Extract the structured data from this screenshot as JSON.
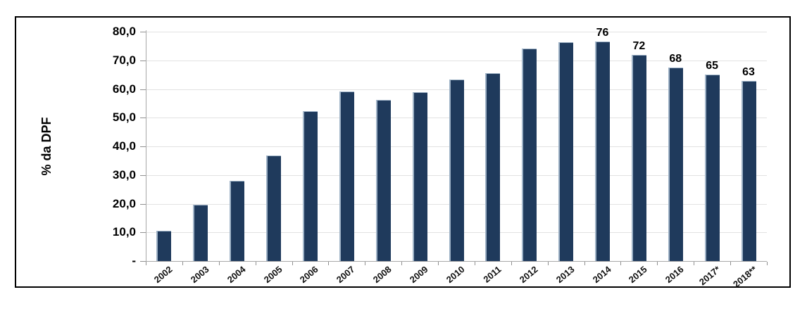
{
  "chart_data": {
    "type": "bar",
    "title": "",
    "xlabel": "",
    "ylabel": "% da DPF",
    "categories": [
      "2002",
      "2003",
      "2004",
      "2005",
      "2006",
      "2007",
      "2008",
      "2009",
      "2010",
      "2011",
      "2012",
      "2013",
      "2014",
      "2015",
      "2016",
      "2017*",
      "2018**"
    ],
    "values": [
      10.5,
      19.7,
      27.9,
      36.7,
      52.3,
      59.2,
      56.3,
      58.8,
      63.2,
      65.4,
      74.0,
      76.4,
      76.5,
      72.0,
      67.6,
      65.0,
      62.7
    ],
    "bar_labels": [
      null,
      null,
      null,
      null,
      null,
      null,
      null,
      null,
      null,
      null,
      null,
      null,
      "76",
      "72",
      "68",
      "65",
      "63"
    ],
    "y_ticks": [
      "80,0",
      "70,0",
      "60,0",
      "50,0",
      "40,0",
      "30,0",
      "20,0",
      "10,0",
      "-"
    ],
    "y_tick_values": [
      80,
      70,
      60,
      50,
      40,
      30,
      20,
      10,
      0
    ],
    "ylim": [
      0,
      80
    ],
    "grid": true,
    "legend": null,
    "colors": {
      "bar_fill": "#1f3a5c",
      "bar_highlight": "#9fb3c7",
      "gridline": "#e2e2e2",
      "axis_line": "#a8a8a8",
      "tick": "#909090",
      "frame_border": "#000000",
      "text": "#000000"
    }
  }
}
